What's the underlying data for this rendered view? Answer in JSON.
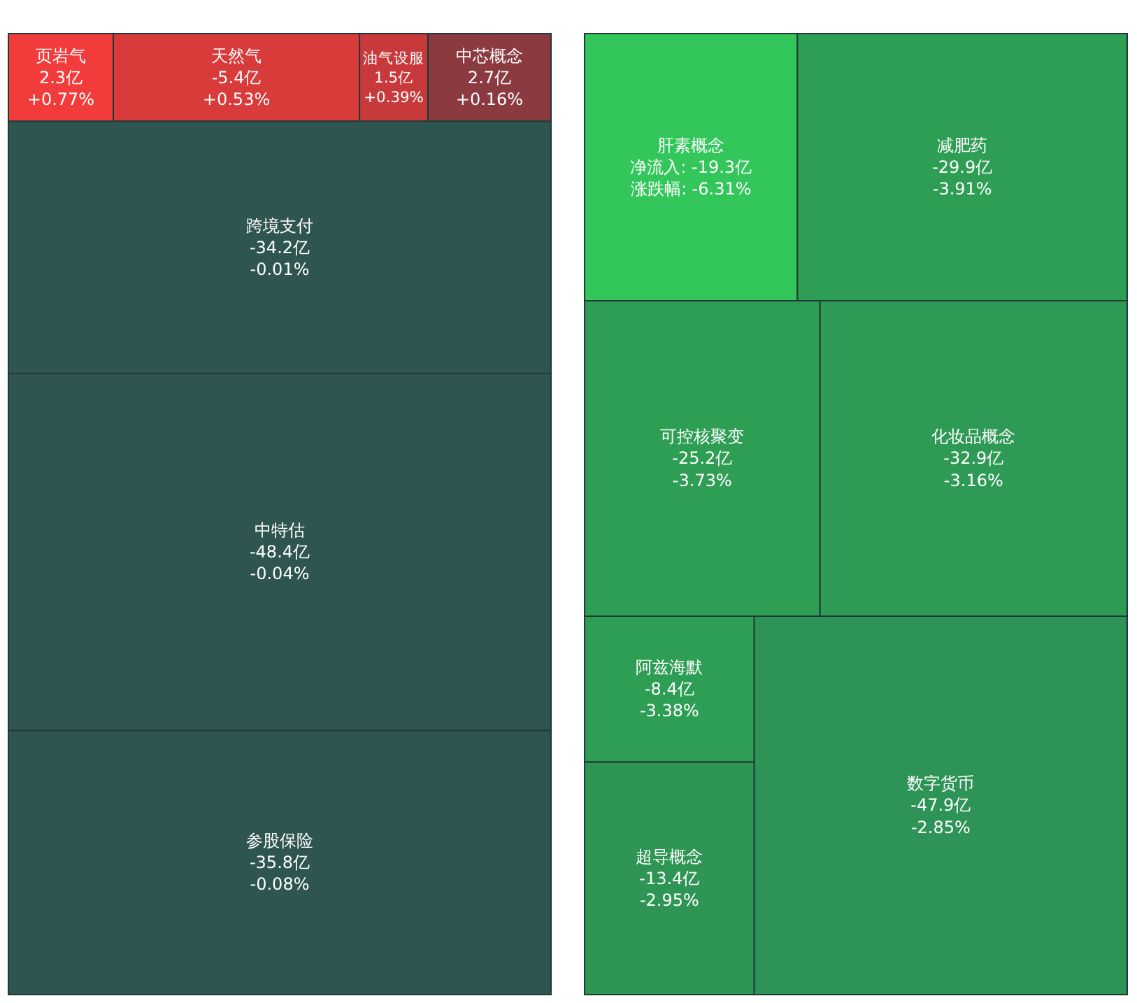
{
  "chart_data": [
    {
      "type": "other",
      "categories": [
        "页岩气",
        "天然气",
        "油气设服",
        "中芯概念",
        "跨境支付",
        "中特估",
        "参股保险"
      ],
      "series": [
        {
          "colors": [
            "#f23b3b",
            "#d93a3a",
            "#c8393b",
            "#8b3a40",
            "#2f5550",
            "#2f5550",
            "#2f5550"
          ],
          "values": [
            2.3,
            -5.4,
            1.5,
            2.7,
            -34.2,
            -48.4,
            -35.8
          ],
          "value_labels": [
            "2.3亿",
            "-5.4亿",
            "1.5亿",
            "2.7亿",
            "-34.2亿",
            "-48.4亿",
            "-35.8亿"
          ]
        },
        {
          "values": [
            0.77,
            0.53,
            0.39,
            0.16,
            -0.01,
            -0.04,
            -0.08
          ],
          "value_labels": [
            "+0.77%",
            "+0.53%",
            "+0.39%",
            "+0.16%",
            "-0.01%",
            "-0.04%",
            "-0.08%"
          ]
        }
      ]
    },
    {
      "type": "other",
      "categories": [
        "肝素概念",
        "减肥药",
        "可控核聚变",
        "化妆品概念",
        "阿兹海默",
        "超导概念",
        "数字货币"
      ],
      "series": [
        {
          "colors": [
            "#33c65a",
            "#2e9e55",
            "#2e9e55",
            "#2e9a56",
            "#2e9e55",
            "#2e9555",
            "#2e9356"
          ],
          "values": [
            -19.3,
            -29.9,
            -25.2,
            -32.9,
            -8.4,
            -13.4,
            -47.9
          ],
          "value_labels": [
            "净流入: -19.3亿",
            "-29.9亿",
            "-25.2亿",
            "-32.9亿",
            "-8.4亿",
            "-13.4亿",
            "-47.9亿"
          ]
        },
        {
          "values": [
            -6.31,
            -3.91,
            -3.73,
            -3.16,
            -3.38,
            -2.95,
            -2.85
          ],
          "value_labels": [
            "涨跌幅: -6.31%",
            "-3.91%",
            "-3.73%",
            "-3.16%",
            "-3.38%",
            "-2.95%",
            "-2.85%"
          ]
        }
      ]
    }
  ]
}
